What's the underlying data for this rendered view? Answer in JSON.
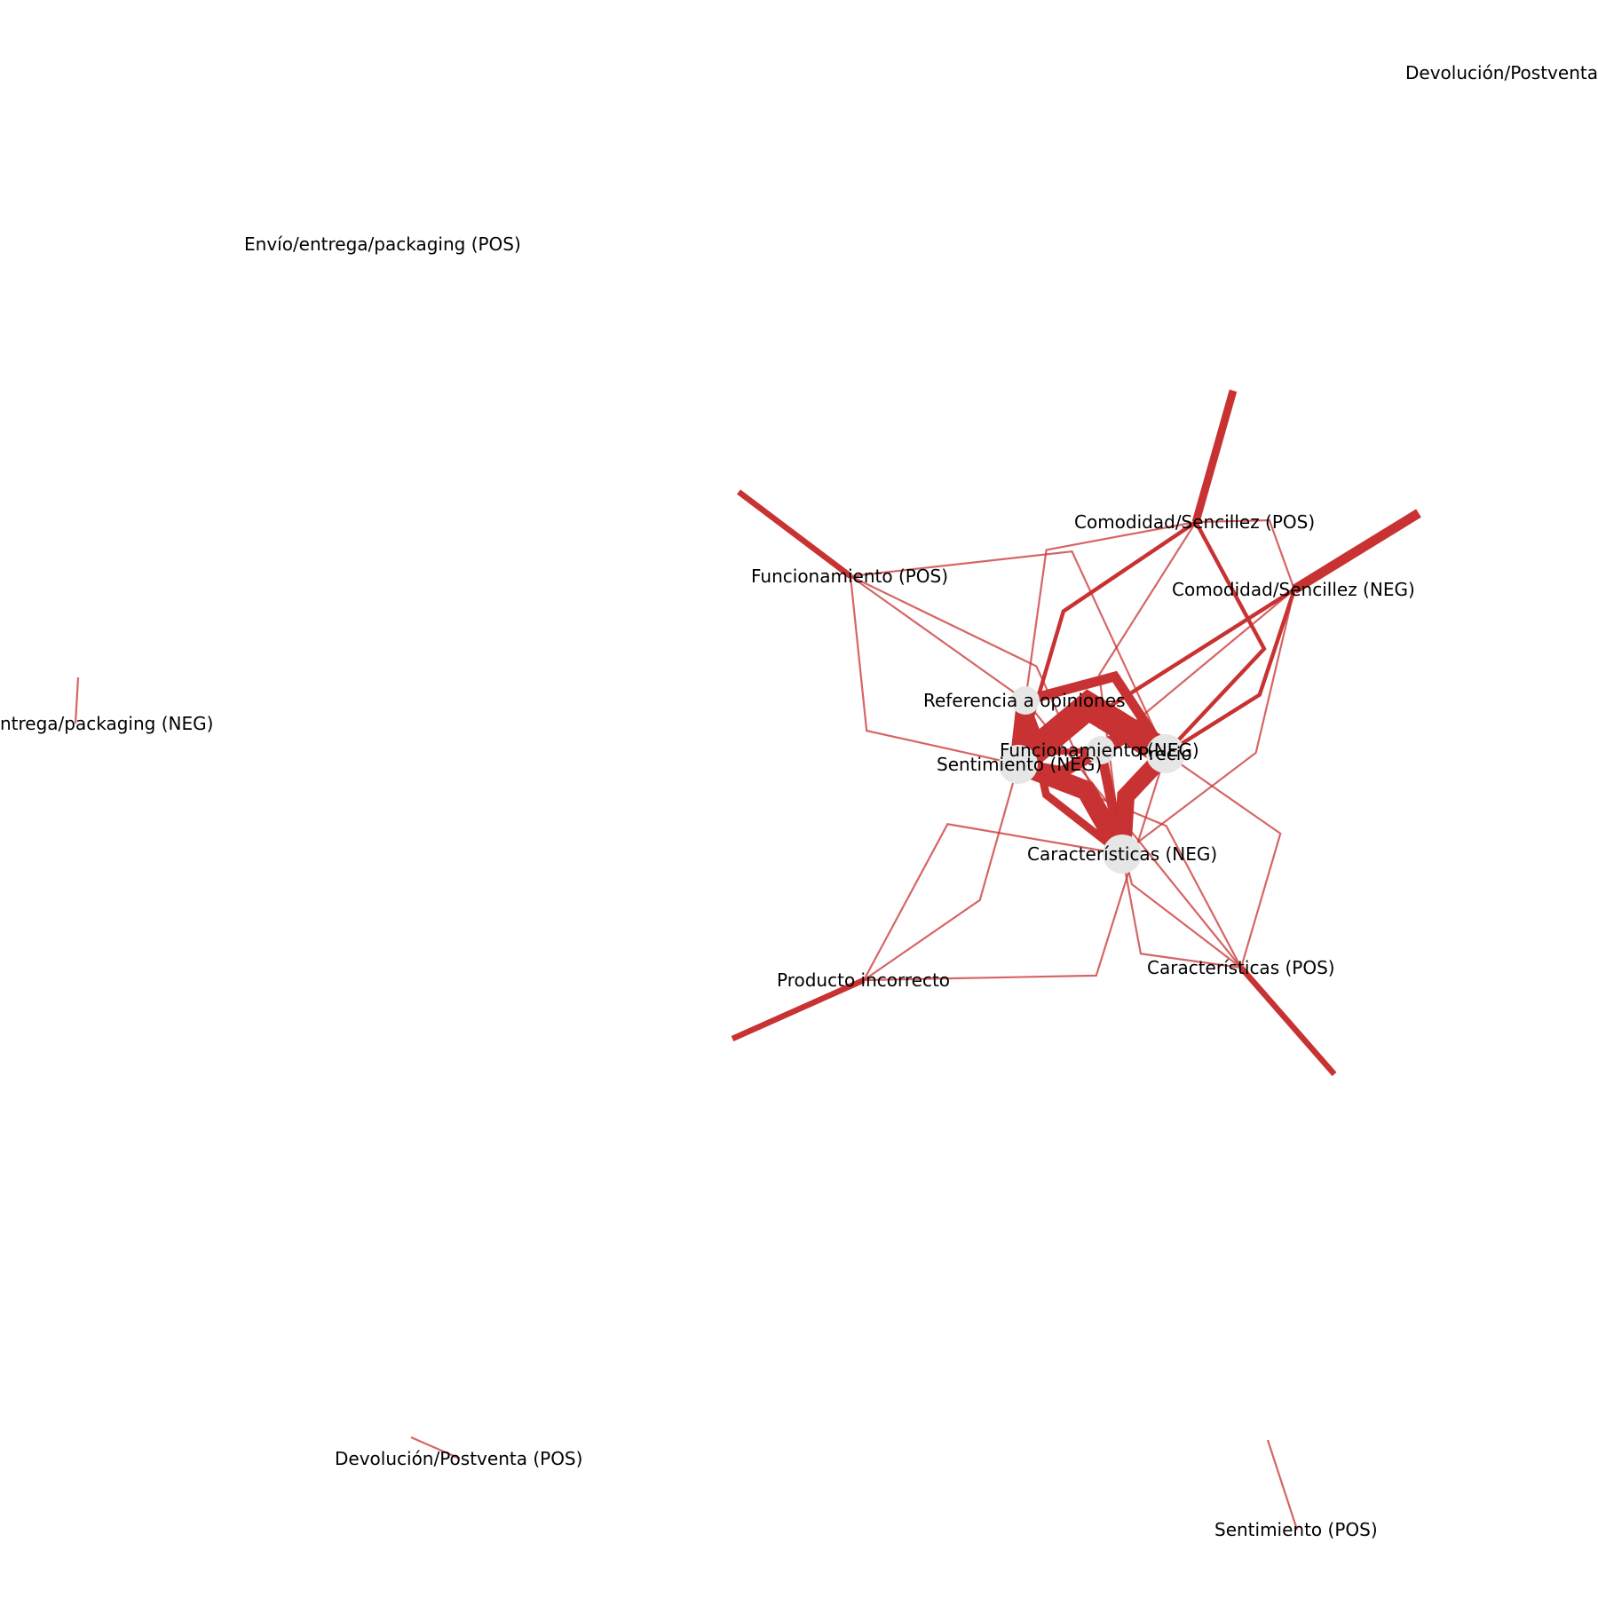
{
  "diagram": {
    "type": "network-graph",
    "colors": {
      "edge": "#c83232",
      "node": "#e6e6e6",
      "label": "#000000",
      "background": "#ffffff"
    },
    "nodes": [
      {
        "id": "devolucion_neg",
        "label": "Devolución/Postventa"
      },
      {
        "id": "envio_pos",
        "label": "Envío/entrega/packaging (POS)"
      },
      {
        "id": "envio_neg",
        "label": "ntrega/packaging (NEG)"
      },
      {
        "id": "comodidad_pos",
        "label": "Comodidad/Sencillez (POS)"
      },
      {
        "id": "comodidad_neg",
        "label": "Comodidad/Sencillez (NEG)"
      },
      {
        "id": "funcionamiento_pos",
        "label": "Funcionamiento (POS)"
      },
      {
        "id": "referencia",
        "label": "Referencia a opiniones"
      },
      {
        "id": "funcionamiento_neg",
        "label": "Funcionamiento (NEG)"
      },
      {
        "id": "precio",
        "label": "Precio"
      },
      {
        "id": "sentimiento_neg",
        "label": "Sentimiento (NEG)"
      },
      {
        "id": "caracteristicas_neg",
        "label": "Características (NEG)"
      },
      {
        "id": "caracteristicas_pos",
        "label": "Características (POS)"
      },
      {
        "id": "producto_incorrecto",
        "label": "Producto incorrecto"
      },
      {
        "id": "devolucion_pos",
        "label": "Devolución/Postventa (POS)"
      },
      {
        "id": "sentimiento_pos",
        "label": "Sentimiento (POS)"
      }
    ],
    "edges": [
      {
        "source": "sentimiento_neg",
        "target": "precio",
        "weight": 14
      },
      {
        "source": "sentimiento_neg",
        "target": "caracteristicas_neg",
        "weight": 10
      },
      {
        "source": "referencia",
        "target": "sentimiento_neg",
        "weight": 9
      },
      {
        "source": "precio",
        "target": "caracteristicas_neg",
        "weight": 9
      },
      {
        "source": "precio",
        "target": "funcionamiento_neg",
        "weight": 8
      },
      {
        "source": "referencia",
        "target": "precio",
        "weight": 5
      },
      {
        "source": "funcionamiento_neg",
        "target": "sentimiento_neg",
        "weight": 6
      },
      {
        "source": "caracteristicas_neg",
        "target": "funcionamiento_neg",
        "weight": 5
      },
      {
        "source": "referencia",
        "target": "caracteristicas_neg",
        "weight": 4
      },
      {
        "source": "referencia",
        "target": "funcionamiento_neg",
        "weight": 3
      },
      {
        "source": "comodidad_pos",
        "target": "precio",
        "weight": 2
      },
      {
        "source": "comodidad_neg",
        "target": "precio",
        "weight": 2
      },
      {
        "source": "comodidad_neg",
        "target": "sentimiento_neg",
        "weight": 2
      },
      {
        "source": "comodidad_pos",
        "target": "sentimiento_neg",
        "weight": 2
      },
      {
        "source": "funcionamiento_pos",
        "target": "sentimiento_neg",
        "weight": 1
      },
      {
        "source": "funcionamiento_pos",
        "target": "precio",
        "weight": 1
      },
      {
        "source": "funcionamiento_pos",
        "target": "caracteristicas_neg",
        "weight": 1
      },
      {
        "source": "funcionamiento_pos",
        "target": "referencia",
        "weight": 1
      },
      {
        "source": "comodidad_pos",
        "target": "caracteristicas_neg",
        "weight": 1
      },
      {
        "source": "comodidad_pos",
        "target": "referencia",
        "weight": 1
      },
      {
        "source": "comodidad_pos",
        "target": "comodidad_neg",
        "weight": 1
      },
      {
        "source": "comodidad_neg",
        "target": "caracteristicas_neg",
        "weight": 1
      },
      {
        "source": "comodidad_neg",
        "target": "funcionamiento_neg",
        "weight": 1
      },
      {
        "source": "caracteristicas_pos",
        "target": "sentimiento_neg",
        "weight": 1
      },
      {
        "source": "caracteristicas_pos",
        "target": "precio",
        "weight": 1
      },
      {
        "source": "caracteristicas_pos",
        "target": "caracteristicas_neg",
        "weight": 1
      },
      {
        "source": "caracteristicas_pos",
        "target": "funcionamiento_neg",
        "weight": 1
      },
      {
        "source": "caracteristicas_pos",
        "target": "referencia",
        "weight": 1
      },
      {
        "source": "producto_incorrecto",
        "target": "sentimiento_neg",
        "weight": 1
      },
      {
        "source": "producto_incorrecto",
        "target": "precio",
        "weight": 1
      },
      {
        "source": "producto_incorrecto",
        "target": "caracteristicas_neg",
        "weight": 1
      },
      {
        "source": "devolucion_pos",
        "target": "devolucion_pos",
        "weight": 1
      },
      {
        "source": "sentimiento_pos",
        "target": "sentimiento_pos",
        "weight": 1
      },
      {
        "source": "envio_neg",
        "target": "envio_neg",
        "weight": 1
      },
      {
        "source": "funcionamiento_pos",
        "target": "funcionamiento_pos",
        "weight": 3
      },
      {
        "source": "comodidad_pos",
        "target": "comodidad_pos",
        "weight": 4
      },
      {
        "source": "comodidad_neg",
        "target": "comodidad_neg",
        "weight": 5
      },
      {
        "source": "producto_incorrecto",
        "target": "producto_incorrecto",
        "weight": 3
      },
      {
        "source": "caracteristicas_pos",
        "target": "caracteristicas_pos",
        "weight": 3
      }
    ]
  }
}
